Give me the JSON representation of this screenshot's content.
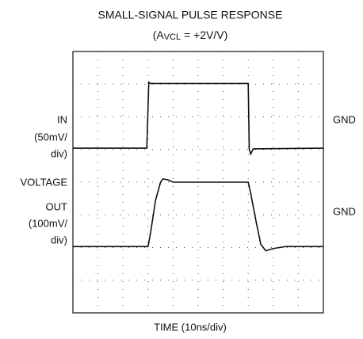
{
  "chart_data": {
    "type": "line",
    "title": "SMALL-SIGNAL PULSE RESPONSE",
    "subtitle": [
      "(A",
      "VCL",
      " = +2V/V)"
    ],
    "xlabel": "TIME (10ns/div)",
    "left_labels": [
      "IN",
      "(50mV/",
      "div)",
      "VOLTAGE",
      "OUT",
      "(100mV/",
      "div)"
    ],
    "right_labels": [
      "GND",
      "GND"
    ],
    "xlim": [
      0,
      100
    ],
    "series": [
      {
        "name": "IN",
        "color": "#111111",
        "ylim": [
          -295,
          105
        ],
        "x": [
          0,
          29.5,
          30.3,
          31,
          70,
          70.4,
          71,
          72,
          100
        ],
        "values": [
          -43,
          -43,
          58,
          56,
          56,
          -45,
          -52,
          -44,
          -43
        ]
      },
      {
        "name": "OUT",
        "color": "#111111",
        "ylim": [
          -305,
          495
        ],
        "x": [
          0,
          30,
          31,
          33,
          35,
          36,
          38,
          40,
          70,
          71,
          73,
          75,
          77,
          80,
          85,
          100
        ],
        "values": [
          -102,
          -102,
          -60,
          40,
          95,
          105,
          102,
          95,
          95,
          60,
          -20,
          -95,
          -115,
          -108,
          -102,
          -102
        ]
      }
    ]
  }
}
